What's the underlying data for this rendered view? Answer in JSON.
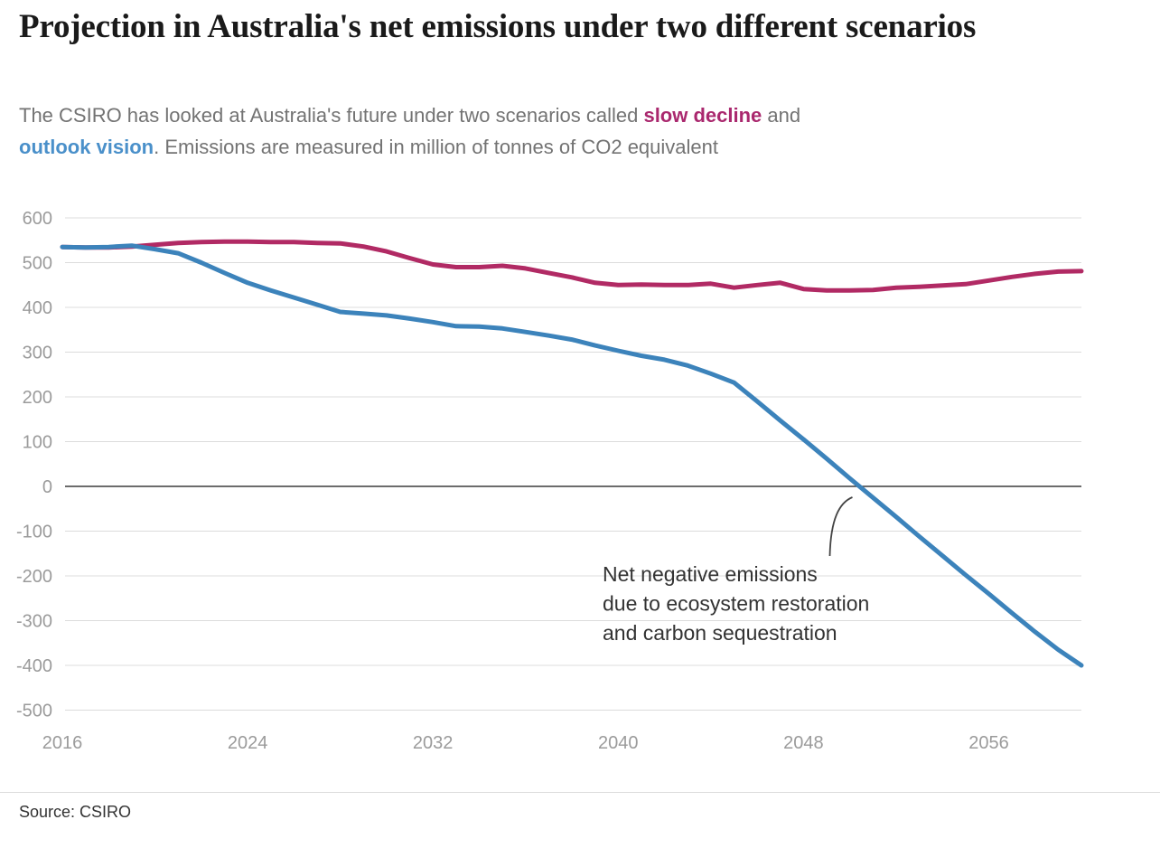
{
  "header": {
    "title": "Projection in Australia's net emissions under two different scenarios",
    "subtitle_parts": [
      {
        "text": "The CSIRO has looked at Australia's future under two scenarios called ",
        "style": "normal"
      },
      {
        "text": "slow decline",
        "style": "emphasis",
        "color": "#aa286e",
        "name": "subtitle-emphasis-slow-decline"
      },
      {
        "text": " and",
        "style": "normal"
      },
      {
        "break": true
      },
      {
        "text": "outlook vision",
        "style": "emphasis",
        "color": "#4a90ca",
        "name": "subtitle-emphasis-outlook-vision"
      },
      {
        "text": ". Emissions are measured in million of tonnes of CO2 equivalent",
        "style": "normal"
      }
    ]
  },
  "chart_data": {
    "type": "line",
    "title": "Projection in Australia's net emissions under two different scenarios",
    "units": "million tonnes of CO2 equivalent",
    "x": [
      2016,
      2017,
      2018,
      2019,
      2020,
      2021,
      2022,
      2023,
      2024,
      2025,
      2026,
      2027,
      2028,
      2029,
      2030,
      2031,
      2032,
      2033,
      2034,
      2035,
      2036,
      2037,
      2038,
      2039,
      2040,
      2041,
      2042,
      2043,
      2044,
      2045,
      2046,
      2047,
      2048,
      2049,
      2050,
      2051,
      2052,
      2053,
      2054,
      2055,
      2056,
      2057,
      2058,
      2059,
      2060
    ],
    "series": [
      {
        "name": "slow decline",
        "color": "#b12a64",
        "values": [
          535,
          534,
          534,
          536,
          540,
          544,
          546,
          547,
          547,
          546,
          546,
          544,
          543,
          536,
          525,
          510,
          496,
          490,
          490,
          493,
          487,
          477,
          467,
          455,
          450,
          451,
          450,
          450,
          453,
          444,
          450,
          455,
          441,
          438,
          438,
          439,
          444,
          446,
          449,
          452,
          460,
          468,
          475,
          480,
          481
        ]
      },
      {
        "name": "outlook vision",
        "color": "#3c83bb",
        "values": [
          535,
          534,
          535,
          538,
          530,
          521,
          500,
          477,
          455,
          438,
          422,
          406,
          390,
          386,
          382,
          375,
          367,
          358,
          357,
          353,
          345,
          337,
          328,
          315,
          303,
          292,
          283,
          270,
          252,
          232,
          190,
          147,
          105,
          62,
          18,
          -25,
          -68,
          -112,
          -155,
          -198,
          -240,
          -283,
          -325,
          -365,
          -400
        ]
      }
    ],
    "xlim": [
      2016,
      2060
    ],
    "ylim": [
      -500,
      600
    ],
    "yticks": [
      600,
      500,
      400,
      300,
      200,
      100,
      0,
      -100,
      -200,
      -300,
      -400,
      -500
    ],
    "xticks": [
      2016,
      2024,
      2032,
      2040,
      2048,
      2056
    ],
    "grid": true,
    "zero_line": true,
    "legend_position": "inline-subtitle",
    "annotation": {
      "lines": [
        "Net negative emissions",
        "due to ecosystem restoration",
        "and carbon sequestration"
      ]
    }
  },
  "source": {
    "label": "Source: CSIRO"
  }
}
